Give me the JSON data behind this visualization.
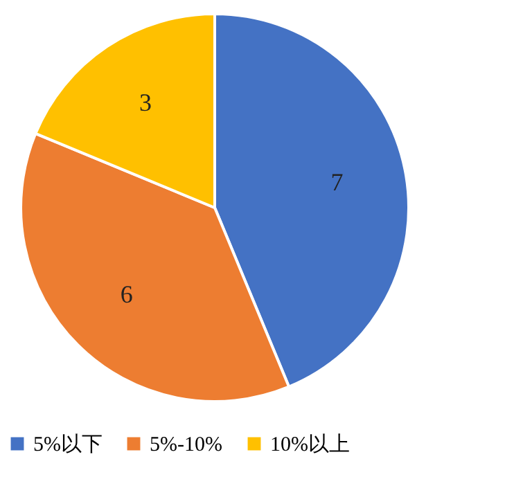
{
  "chart_data": {
    "type": "pie",
    "categories": [
      "5%以下",
      "5%-10%",
      "10%以上"
    ],
    "values": [
      7,
      6,
      3
    ],
    "colors": [
      "#4472c4",
      "#ed7d31",
      "#ffc000"
    ],
    "data_labels": true,
    "legend": "bottom"
  }
}
